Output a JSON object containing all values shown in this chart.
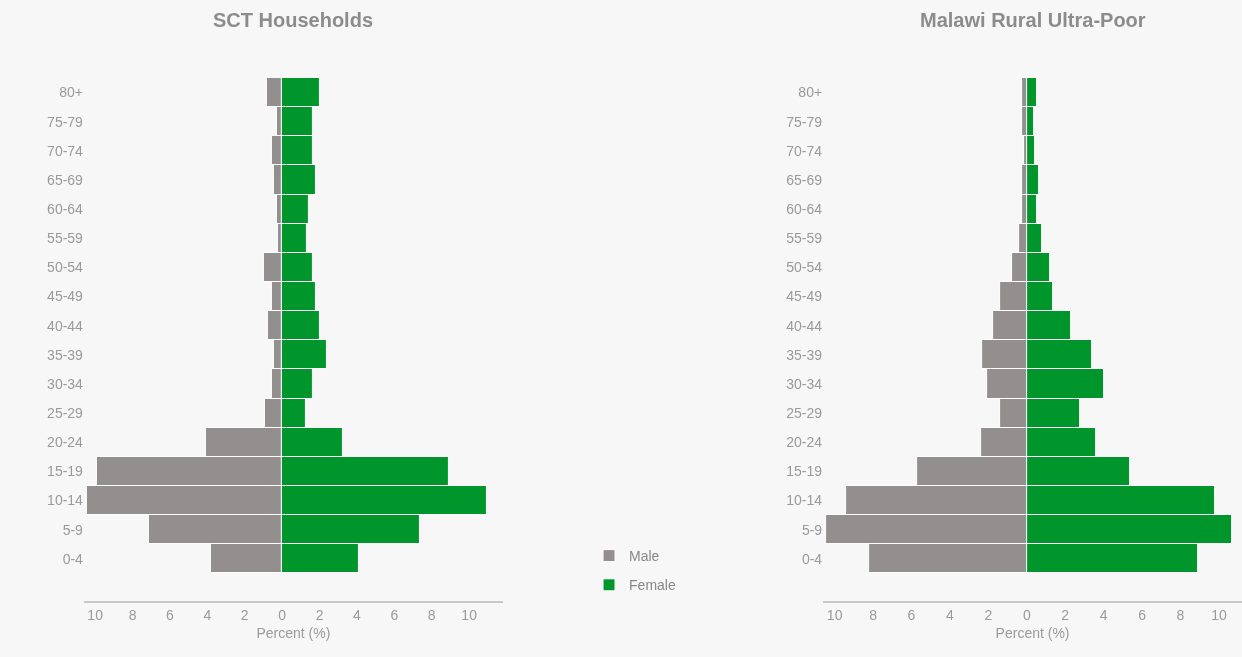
{
  "chart_data": [
    {
      "type": "bar",
      "orientation": "horizontal",
      "title": "SCT Households",
      "xlabel": "Percent (%)",
      "categories": [
        "80+",
        "75-79",
        "70-74",
        "65-69",
        "60-64",
        "55-59",
        "50-54",
        "45-49",
        "40-44",
        "35-39",
        "30-34",
        "25-29",
        "20-24",
        "15-19",
        "10-14",
        "5-9",
        "0-4"
      ],
      "series": [
        {
          "name": "Male",
          "color": "#948f8f",
          "values": [
            -0.8,
            -0.3,
            -0.55,
            -0.45,
            -0.3,
            -0.2,
            -1.0,
            -0.55,
            -0.75,
            -0.45,
            -0.55,
            -0.9,
            -4.1,
            -9.9,
            -10.45,
            -7.1,
            -3.8
          ]
        },
        {
          "name": "Female",
          "color": "#00962b",
          "values": [
            2.0,
            1.65,
            1.65,
            1.8,
            1.45,
            1.3,
            1.65,
            1.8,
            2.0,
            2.4,
            1.65,
            1.25,
            3.25,
            8.9,
            10.95,
            7.35,
            4.1
          ]
        }
      ],
      "xlim": [
        -10.6,
        11.8
      ],
      "xticks": [
        {
          "value": -10,
          "label": "10"
        },
        {
          "value": -8,
          "label": "8"
        },
        {
          "value": -6,
          "label": "6"
        },
        {
          "value": -4,
          "label": "4"
        },
        {
          "value": -2,
          "label": "2"
        },
        0,
        2,
        4,
        6,
        8,
        10
      ],
      "grid": false,
      "stacked": true,
      "legend": "bottom right"
    },
    {
      "type": "bar",
      "orientation": "horizontal",
      "title": "Malawi Rural Ultra-Poor",
      "xlabel": "Percent (%)",
      "categories": [
        "80+",
        "75-79",
        "70-74",
        "65-69",
        "60-64",
        "55-59",
        "50-54",
        "45-49",
        "40-44",
        "35-39",
        "30-34",
        "25-29",
        "20-24",
        "15-19",
        "10-14",
        "5-9",
        "0-4"
      ],
      "series": [
        {
          "name": "Male",
          "color": "#948f8f",
          "values": [
            -0.25,
            -0.25,
            -0.15,
            -0.25,
            -0.25,
            -0.4,
            -0.75,
            -1.4,
            -1.75,
            -2.3,
            -2.05,
            -1.4,
            -2.4,
            -5.7,
            -9.4,
            -10.45,
            -8.2
          ]
        },
        {
          "name": "Female",
          "color": "#00962b",
          "values": [
            0.55,
            0.4,
            0.45,
            0.65,
            0.55,
            0.8,
            1.2,
            1.35,
            2.3,
            3.4,
            4.0,
            2.75,
            3.6,
            5.4,
            9.8,
            10.7,
            8.9
          ]
        }
      ],
      "xlim": [
        -10.6,
        11.2
      ],
      "xticks": [
        {
          "value": -10,
          "label": "10"
        },
        {
          "value": -8,
          "label": "8"
        },
        {
          "value": -6,
          "label": "6"
        },
        {
          "value": -4,
          "label": "4"
        },
        {
          "value": -2,
          "label": "2"
        },
        0,
        2,
        4,
        6,
        8,
        10
      ],
      "grid": false,
      "stacked": true
    }
  ]
}
